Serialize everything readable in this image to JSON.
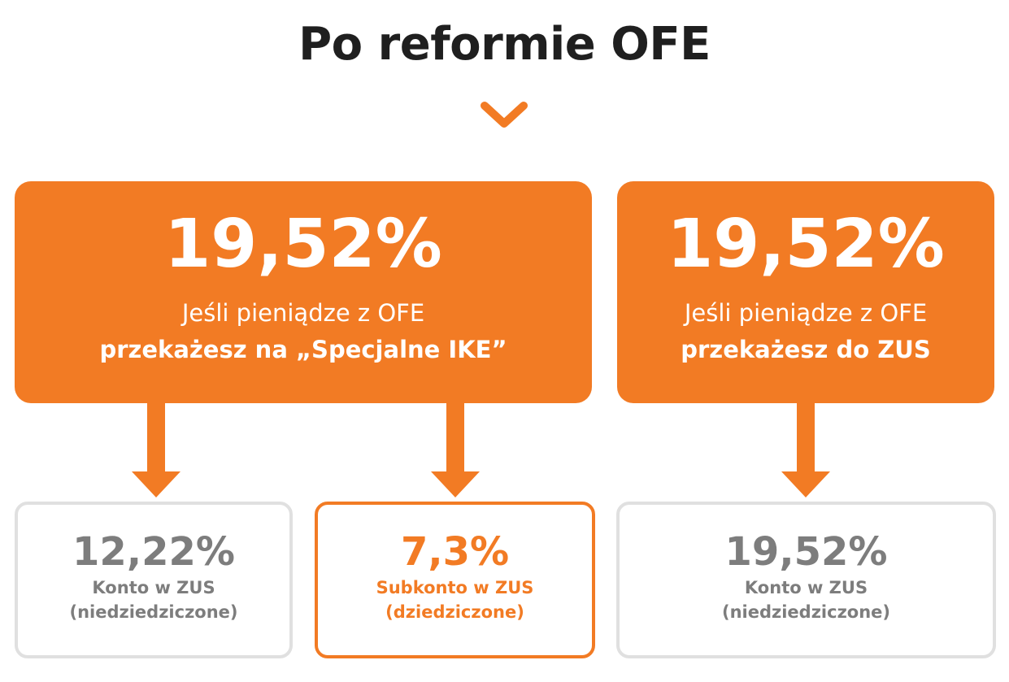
{
  "title": "Po reformie OFE",
  "colors": {
    "accent": "#f27b24",
    "text_dark": "#1f1f1f",
    "text_gray": "#7d7d7d",
    "border_gray": "#e0e0e0"
  },
  "main_boxes": [
    {
      "percent": "19,52%",
      "line1": "Jeśli pieniądze z OFE",
      "line2": "przekażesz na „Specjalne IKE”"
    },
    {
      "percent": "19,52%",
      "line1": "Jeśli pieniądze z OFE",
      "line2": "przekażesz do ZUS"
    }
  ],
  "sub_boxes": [
    {
      "percent": "12,22%",
      "line1": "Konto w ZUS",
      "line2": "(niedziedziczone)"
    },
    {
      "percent": "7,3%",
      "line1": "Subkonto w ZUS",
      "line2": "(dziedziczone)"
    },
    {
      "percent": "19,52%",
      "line1": "Konto w ZUS",
      "line2": "(niedziedziczone)"
    }
  ]
}
